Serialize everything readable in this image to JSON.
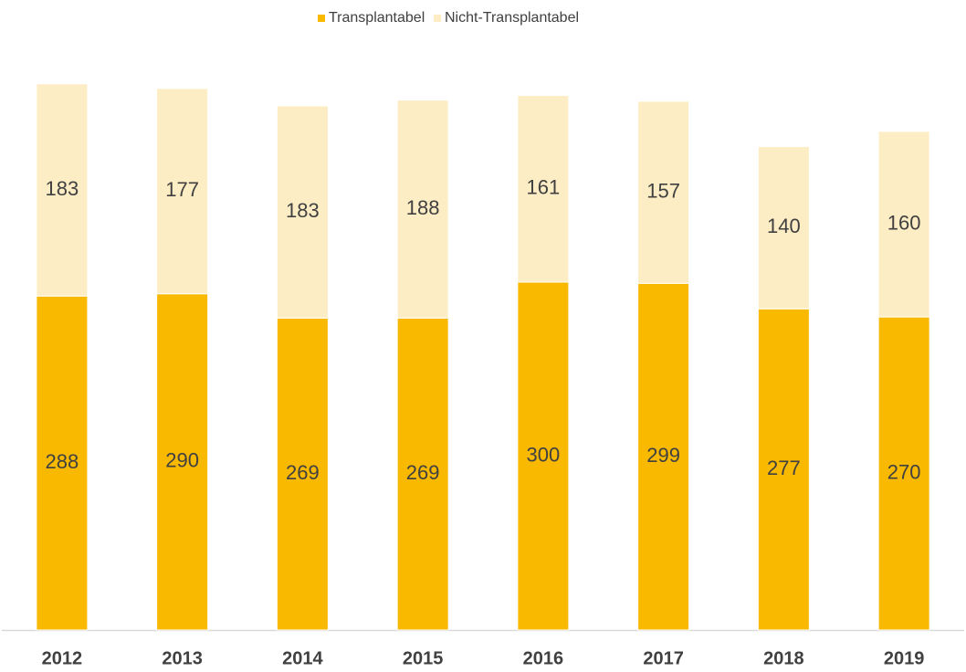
{
  "chart_data": {
    "type": "stacked_bar",
    "categories": [
      "2012",
      "2013",
      "2014",
      "2015",
      "2016",
      "2017",
      "2018",
      "2019"
    ],
    "series": [
      {
        "name": "Transplantabel",
        "color": "#f9b900",
        "values": [
          288,
          290,
          269,
          269,
          300,
          299,
          277,
          270
        ]
      },
      {
        "name": "Nicht-Transplantabel",
        "color": "#fdedc4",
        "values": [
          183,
          177,
          183,
          188,
          161,
          157,
          140,
          160
        ]
      }
    ],
    "legend": "top"
  }
}
